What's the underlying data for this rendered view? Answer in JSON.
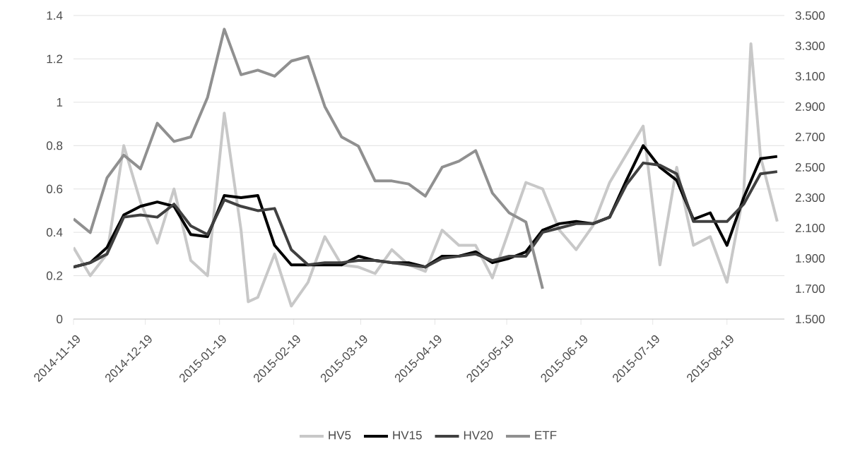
{
  "chart_data": {
    "type": "line",
    "x": [
      "2014-11-19",
      "2014-11-26",
      "2014-12-03",
      "2014-12-10",
      "2014-12-17",
      "2014-12-24",
      "2014-12-31",
      "2015-01-07",
      "2015-01-14",
      "2015-01-21",
      "2015-01-28",
      "2015-02-04",
      "2015-02-11",
      "2015-02-18",
      "2015-02-25",
      "2015-03-04",
      "2015-03-11",
      "2015-03-18",
      "2015-03-25",
      "2015-04-01",
      "2015-04-08",
      "2015-04-15",
      "2015-04-22",
      "2015-04-29",
      "2015-05-06",
      "2015-05-13",
      "2015-05-20",
      "2015-05-27",
      "2015-06-03",
      "2015-06-10",
      "2015-06-17",
      "2015-06-24",
      "2015-07-01",
      "2015-07-08",
      "2015-07-15",
      "2015-07-22",
      "2015-07-29",
      "2015-08-05",
      "2015-08-12",
      "2015-08-19",
      "2015-08-26",
      "2015-09-02",
      "2015-09-09"
    ],
    "series": [
      {
        "name": "HV5",
        "color": "#c8c8c8",
        "x": [
          "2014-11-19",
          "2014-11-26",
          "2014-12-03",
          "2014-12-10",
          "2014-12-17",
          "2014-12-24",
          "2014-12-31",
          "2015-01-07",
          "2015-01-14",
          "2015-01-21",
          "2015-01-28",
          "2015-01-31",
          "2015-02-04",
          "2015-02-11",
          "2015-02-18",
          "2015-02-25",
          "2015-03-04",
          "2015-03-11",
          "2015-03-18",
          "2015-03-25",
          "2015-04-01",
          "2015-04-08",
          "2015-04-15",
          "2015-04-22",
          "2015-04-29",
          "2015-05-06",
          "2015-05-13",
          "2015-05-20",
          "2015-05-27",
          "2015-06-03",
          "2015-06-10",
          "2015-06-17",
          "2015-06-24",
          "2015-07-01",
          "2015-07-08",
          "2015-07-15",
          "2015-07-22",
          "2015-07-29",
          "2015-08-05",
          "2015-08-12",
          "2015-08-19",
          "2015-08-26",
          "2015-08-29",
          "2015-09-02",
          "2015-09-09"
        ],
        "values": [
          0.33,
          0.2,
          0.3,
          0.8,
          0.54,
          0.35,
          0.6,
          0.27,
          0.2,
          0.95,
          0.41,
          0.08,
          0.1,
          0.3,
          0.06,
          0.17,
          0.38,
          0.25,
          0.24,
          0.21,
          0.32,
          0.25,
          0.22,
          0.41,
          0.34,
          0.34,
          0.19,
          0.41,
          0.63,
          0.6,
          0.41,
          0.32,
          0.43,
          0.63,
          0.76,
          0.89,
          0.25,
          0.7,
          0.34,
          0.38,
          0.17,
          0.58,
          1.27,
          0.75,
          0.45
        ]
      },
      {
        "name": "HV15",
        "color": "#000000",
        "values": [
          0.24,
          0.26,
          0.33,
          0.48,
          0.52,
          0.54,
          0.52,
          0.39,
          0.38,
          0.57,
          0.56,
          0.57,
          0.34,
          0.25,
          0.25,
          0.25,
          0.25,
          0.29,
          0.27,
          0.26,
          0.26,
          0.24,
          0.29,
          0.29,
          0.31,
          0.26,
          0.28,
          0.31,
          0.41,
          0.44,
          0.45,
          0.44,
          0.47,
          0.64,
          0.8,
          0.7,
          0.64,
          0.46,
          0.49,
          0.34,
          0.56,
          0.74,
          0.75
        ]
      },
      {
        "name": "HV20",
        "color": "#404040",
        "values": [
          0.24,
          0.26,
          0.3,
          0.47,
          0.48,
          0.47,
          0.53,
          0.43,
          0.39,
          0.55,
          0.52,
          0.5,
          0.51,
          0.32,
          0.25,
          0.26,
          0.26,
          0.27,
          0.27,
          0.26,
          0.25,
          0.24,
          0.28,
          0.29,
          0.3,
          0.27,
          0.29,
          0.29,
          0.4,
          0.42,
          0.44,
          0.44,
          0.47,
          0.62,
          0.72,
          0.71,
          0.67,
          0.45,
          0.45,
          0.45,
          0.53,
          0.67,
          0.68
        ]
      },
      {
        "name": "ETF",
        "color": "#909090",
        "axis": "y2",
        "x": [
          "2014-11-19",
          "2014-11-26",
          "2014-12-03",
          "2014-12-10",
          "2014-12-17",
          "2014-12-24",
          "2014-12-31",
          "2015-01-07",
          "2015-01-14",
          "2015-01-21",
          "2015-01-28",
          "2015-02-04",
          "2015-02-11",
          "2015-02-18",
          "2015-02-25",
          "2015-03-04",
          "2015-03-11",
          "2015-03-18",
          "2015-03-25",
          "2015-04-01",
          "2015-04-08",
          "2015-04-15",
          "2015-04-22",
          "2015-04-29",
          "2015-05-06",
          "2015-05-13",
          "2015-05-20",
          "2015-05-27",
          "2015-06-03"
        ],
        "values": [
          2.16,
          2.07,
          2.43,
          2.58,
          2.49,
          2.79,
          2.67,
          2.7,
          2.96,
          3.41,
          3.11,
          3.14,
          3.1,
          3.2,
          3.23,
          2.9,
          2.7,
          2.64,
          2.41,
          2.41,
          2.39,
          2.31,
          2.5,
          2.54,
          2.61,
          2.33,
          2.2,
          2.14,
          1.7
        ]
      }
    ],
    "xlim": [
      "2014-11-19",
      "2015-09-12"
    ],
    "xticks": [
      "2014-11-19",
      "2014-12-19",
      "2015-01-19",
      "2015-02-19",
      "2015-03-19",
      "2015-04-19",
      "2015-05-19",
      "2015-06-19",
      "2015-07-19",
      "2015-08-19"
    ],
    "ylim": [
      0,
      1.4
    ],
    "yticks": [
      0,
      0.2,
      0.4,
      0.6,
      0.8,
      1,
      1.2,
      1.4
    ],
    "y2lim": [
      1.5,
      3.5
    ],
    "y2ticks": [
      {
        "value": 1.5,
        "label": "1.500"
      },
      {
        "value": 1.7,
        "label": "1.700"
      },
      {
        "value": 1.9,
        "label": "1.900"
      },
      {
        "value": 2.1,
        "label": "2.100"
      },
      {
        "value": 2.3,
        "label": "2.300"
      },
      {
        "value": 2.5,
        "label": "2.500"
      },
      {
        "value": 2.7,
        "label": "2.700"
      },
      {
        "value": 2.9,
        "label": "2.900"
      },
      {
        "value": 3.1,
        "label": "3.100"
      },
      {
        "value": 3.3,
        "label": "3.300"
      },
      {
        "value": 3.5,
        "label": "3.500"
      }
    ],
    "grid": "y",
    "legend": "bottom",
    "line_style": "solid"
  }
}
